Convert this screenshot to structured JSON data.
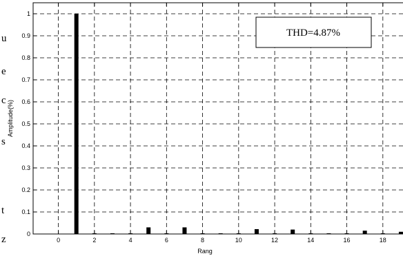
{
  "chart_data": {
    "type": "bar",
    "xlabel": "Rang",
    "ylabel": "Amplitude(%)",
    "xlim": [
      -1.4,
      19.5
    ],
    "ylim": [
      0,
      1.05
    ],
    "xticks": [
      0,
      2,
      4,
      6,
      8,
      10,
      12,
      14,
      16,
      18
    ],
    "yticks": [
      0,
      0.1,
      0.2,
      0.3,
      0.4,
      0.5,
      0.6,
      0.7,
      0.8,
      0.9,
      1
    ],
    "grid": true,
    "grid_style": "dashed",
    "annotation": "THD=4.87%",
    "annotation_position": "top-right",
    "bar_color": "#000000",
    "x": [
      1,
      2,
      3,
      4,
      5,
      6,
      7,
      8,
      9,
      10,
      11,
      12,
      13,
      14,
      15,
      16,
      17,
      18,
      19
    ],
    "values": [
      1.0,
      0.002,
      0.002,
      0.002,
      0.03,
      0.002,
      0.03,
      0.002,
      0.003,
      0.002,
      0.022,
      0.002,
      0.02,
      0.002,
      0.003,
      0.002,
      0.015,
      0.002,
      0.01
    ]
  },
  "edge_text": [
    "u",
    "e",
    "c",
    "s",
    "t",
    "z"
  ]
}
